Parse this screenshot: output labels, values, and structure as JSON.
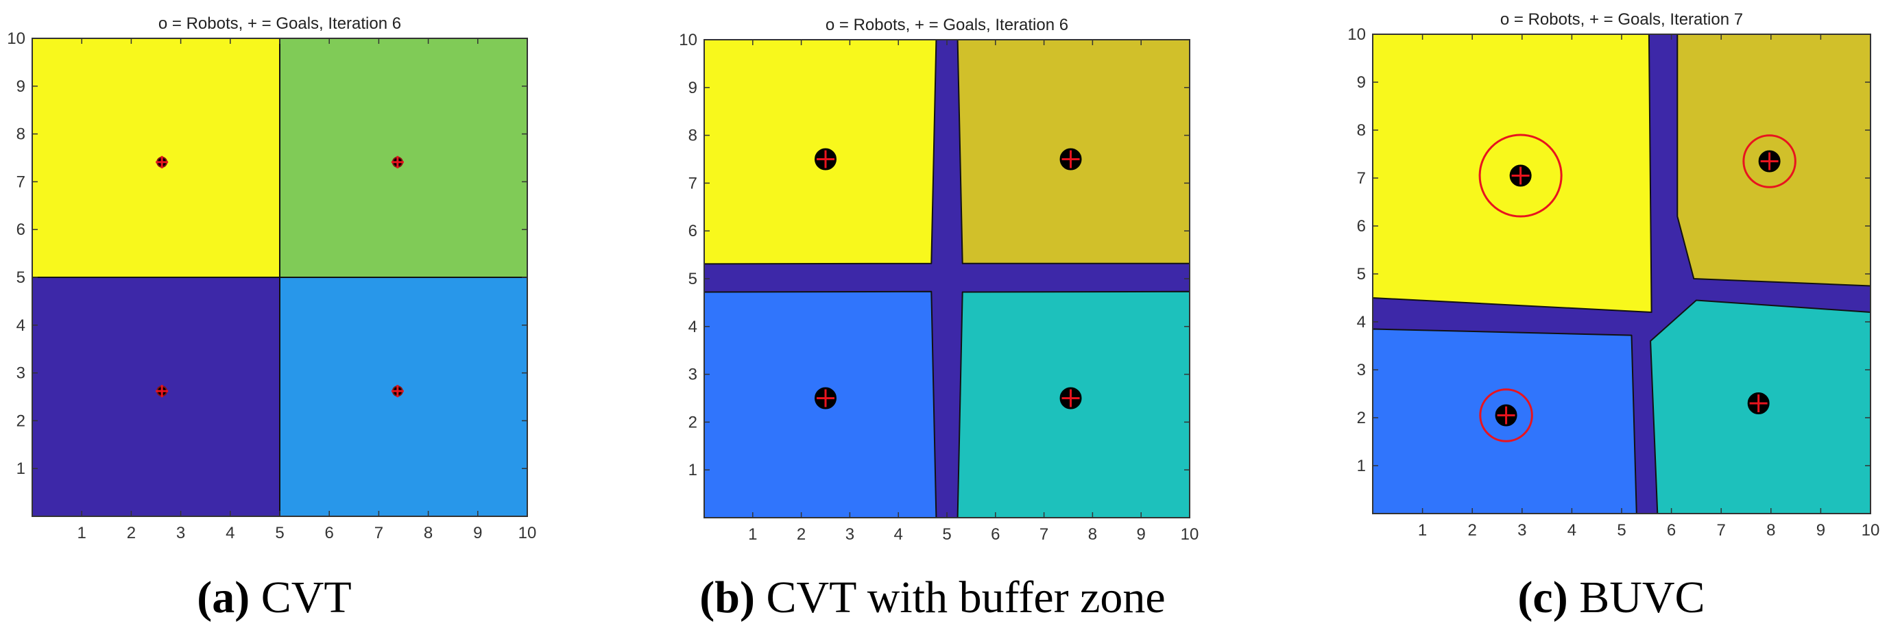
{
  "chart_data": [
    {
      "type": "scatter",
      "title": "o = Robots, + = Goals, Iteration 6",
      "xlim": [
        0,
        10
      ],
      "ylim": [
        0,
        10
      ],
      "xticks": [
        "1",
        "2",
        "3",
        "4",
        "5",
        "6",
        "7",
        "8",
        "9",
        "10"
      ],
      "yticks": [
        "1",
        "2",
        "3",
        "4",
        "5",
        "6",
        "7",
        "8",
        "9",
        "10"
      ],
      "grid": false,
      "regions": [
        {
          "color": "#F8F81C",
          "x": [
            0,
            5
          ],
          "y": [
            5,
            10
          ]
        },
        {
          "color": "#80CB57",
          "x": [
            5,
            10
          ],
          "y": [
            5,
            10
          ]
        },
        {
          "color": "#3D28A8",
          "x": [
            0,
            5
          ],
          "y": [
            0,
            5
          ]
        },
        {
          "color": "#2897EA",
          "x": [
            5,
            10
          ],
          "y": [
            0,
            5
          ]
        }
      ],
      "robots": [
        {
          "x": 2.62,
          "y": 7.41
        },
        {
          "x": 7.38,
          "y": 7.41
        },
        {
          "x": 2.62,
          "y": 2.62
        },
        {
          "x": 7.38,
          "y": 2.62
        }
      ],
      "goals": [
        {
          "x": 2.62,
          "y": 7.41
        },
        {
          "x": 7.38,
          "y": 7.41
        },
        {
          "x": 2.62,
          "y": 2.62
        },
        {
          "x": 7.38,
          "y": 2.62
        }
      ],
      "caption_tag": "(a)",
      "caption_text": "CVT"
    },
    {
      "type": "scatter",
      "title": "o = Robots, + = Goals, Iteration 6",
      "xlim": [
        0,
        10
      ],
      "ylim": [
        0,
        10
      ],
      "xticks": [
        "1",
        "2",
        "3",
        "4",
        "5",
        "6",
        "7",
        "8",
        "9",
        "10"
      ],
      "yticks": [
        "1",
        "2",
        "3",
        "4",
        "5",
        "6",
        "7",
        "8",
        "9",
        "10"
      ],
      "grid": false,
      "background": "#3D28A8",
      "cells": [
        {
          "color": "#F8F81C",
          "pts": [
            [
              0,
              10
            ],
            [
              4.78,
              10
            ],
            [
              4.68,
              5.32
            ],
            [
              0,
              5.31
            ]
          ]
        },
        {
          "color": "#D1C02A",
          "pts": [
            [
              5.22,
              10
            ],
            [
              10,
              10
            ],
            [
              10,
              5.32
            ],
            [
              5.32,
              5.32
            ]
          ]
        },
        {
          "color": "#3075FC",
          "pts": [
            [
              0,
              4.72
            ],
            [
              4.68,
              4.73
            ],
            [
              4.78,
              0
            ],
            [
              0,
              0
            ]
          ]
        },
        {
          "color": "#1DC1BC",
          "pts": [
            [
              5.32,
              4.72
            ],
            [
              10,
              4.73
            ],
            [
              10,
              0
            ],
            [
              5.22,
              0
            ]
          ]
        }
      ],
      "robots": [
        {
          "x": 2.5,
          "y": 7.5
        },
        {
          "x": 7.55,
          "y": 7.5
        },
        {
          "x": 2.5,
          "y": 2.5
        },
        {
          "x": 7.55,
          "y": 2.5
        }
      ],
      "goals": [
        {
          "x": 2.5,
          "y": 7.5
        },
        {
          "x": 7.55,
          "y": 7.5
        },
        {
          "x": 2.5,
          "y": 2.5
        },
        {
          "x": 7.55,
          "y": 2.5
        }
      ],
      "caption_tag": "(b)",
      "caption_text": "CVT with buffer zone"
    },
    {
      "type": "scatter",
      "title": "o = Robots, + = Goals, Iteration 7",
      "xlim": [
        0,
        10
      ],
      "ylim": [
        0,
        10
      ],
      "xticks": [
        "1",
        "2",
        "3",
        "4",
        "5",
        "6",
        "7",
        "8",
        "9",
        "10"
      ],
      "yticks": [
        "1",
        "2",
        "3",
        "4",
        "5",
        "6",
        "7",
        "8",
        "9",
        "10"
      ],
      "grid": false,
      "background": "#3D28A8",
      "cells": [
        {
          "color": "#F8F81C",
          "pts": [
            [
              0,
              10
            ],
            [
              5.55,
              10
            ],
            [
              5.6,
              4.2
            ],
            [
              5.6,
              4.2
            ],
            [
              0,
              4.5
            ]
          ]
        },
        {
          "color": "#D1C02A",
          "pts": [
            [
              6.12,
              10
            ],
            [
              10,
              10
            ],
            [
              10,
              4.75
            ],
            [
              6.45,
              4.9
            ],
            [
              6.12,
              6.2
            ]
          ]
        },
        {
          "color": "#3075FC",
          "pts": [
            [
              0,
              3.85
            ],
            [
              5.2,
              3.72
            ],
            [
              5.3,
              0
            ],
            [
              0,
              0
            ]
          ]
        },
        {
          "color": "#1DC1BC",
          "pts": [
            [
              5.58,
              3.6
            ],
            [
              6.5,
              4.45
            ],
            [
              10,
              4.2
            ],
            [
              10,
              0
            ],
            [
              5.72,
              0
            ]
          ]
        }
      ],
      "robots": [
        {
          "x": 2.97,
          "y": 7.05,
          "ring": 0.82
        },
        {
          "x": 7.97,
          "y": 7.35,
          "ring": 0.52
        },
        {
          "x": 2.68,
          "y": 2.05,
          "ring": 0.52
        },
        {
          "x": 7.75,
          "y": 2.3,
          "ring": 0
        }
      ],
      "goals": [
        {
          "x": 2.97,
          "y": 7.05
        },
        {
          "x": 7.97,
          "y": 7.35
        },
        {
          "x": 2.68,
          "y": 2.05
        },
        {
          "x": 7.75,
          "y": 2.3
        }
      ],
      "caption_tag": "(c)",
      "caption_text": "BUVC"
    }
  ]
}
